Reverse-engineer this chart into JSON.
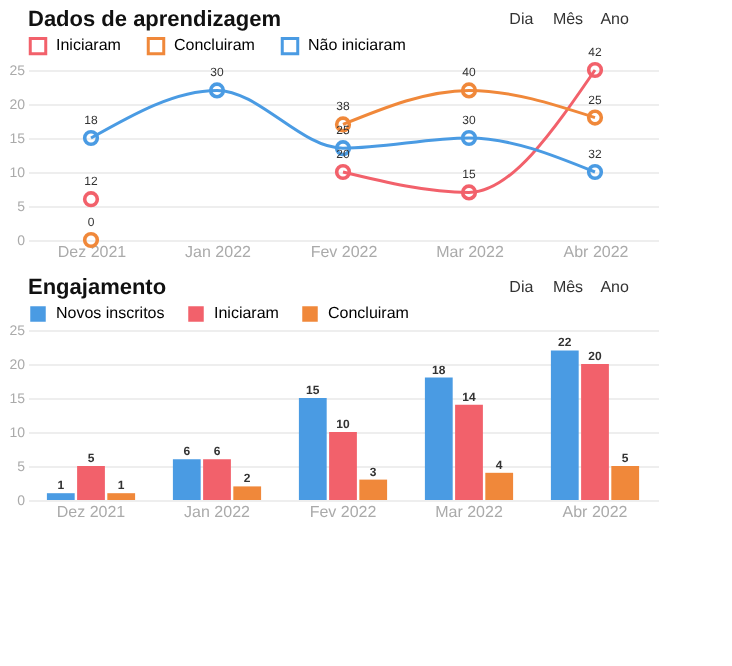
{
  "chart_data": [
    {
      "type": "line",
      "title": "Dados de aprendizagem",
      "annotations": [
        "Dia",
        "Mês",
        "Ano",
        {
          "text": "12",
          "x": "Dez 2021",
          "y": 6
        },
        {
          "text": "20",
          "x": "Fev 2022",
          "y": 10
        },
        {
          "text": "15",
          "x": "Mar 2022",
          "y": 7
        },
        {
          "text": "42",
          "x": "Abr 2022",
          "y": 25
        },
        {
          "text": "0",
          "x": "Dez 2021",
          "y": 0
        },
        {
          "text": "38",
          "x": "Fev 2022",
          "y": 17
        },
        {
          "text": "40",
          "x": "Mar 2022",
          "y": 22
        },
        {
          "text": "25",
          "x": "Abr 2022",
          "y": 18
        },
        {
          "text": "18",
          "x": "Dez 2021",
          "y": 15
        },
        {
          "text": "30",
          "x": "Jan 2022",
          "y": 22
        },
        {
          "text": "25",
          "x": "Fev 2022",
          "y": 13.5
        },
        {
          "text": "30",
          "x": "Mar 2022",
          "y": 15
        },
        {
          "text": "32",
          "x": "Abr 2022",
          "y": 10
        }
      ],
      "categories": [
        "Dez 2021",
        "Jan 2022",
        "Fev 2022",
        "Mar 2022",
        "Abr 2022"
      ],
      "series": [
        {
          "name": "Iniciaram",
          "color": "#f2616b",
          "values": [
            6,
            null,
            10,
            7,
            25
          ]
        },
        {
          "name": "Concluiram",
          "color": "#f0883a",
          "values": [
            0,
            null,
            17,
            22,
            18
          ]
        },
        {
          "name": "Não iniciaram",
          "color": "#4a9be3",
          "values": [
            15,
            22,
            13.5,
            15,
            10
          ]
        }
      ],
      "ylim": [
        0,
        25
      ],
      "yticks": [
        0,
        5,
        10,
        15,
        20,
        25
      ],
      "grid": "y",
      "legend": "top left",
      "marker": "circle"
    },
    {
      "type": "bar",
      "title": "Engajamento",
      "annotations": [
        "Dia",
        "Mês",
        "Ano"
      ],
      "categories": [
        "Dez 2021",
        "Jan 2022",
        "Fev 2022",
        "Mar 2022",
        "Abr 2022"
      ],
      "series": [
        {
          "name": "Novos inscritos",
          "color": "#4a9be3",
          "values": [
            1,
            6,
            15,
            18,
            22
          ]
        },
        {
          "name": "Iniciaram",
          "color": "#f2616b",
          "values": [
            5,
            6,
            10,
            14,
            20
          ]
        },
        {
          "name": "Concluiram",
          "color": "#f0883a",
          "values": [
            1,
            2,
            3,
            4,
            5
          ]
        }
      ],
      "data_labels": true,
      "ylim": [
        0,
        25
      ],
      "yticks": [
        0,
        5,
        10,
        15,
        20,
        25
      ],
      "grid": "y",
      "legend": "top left"
    }
  ]
}
